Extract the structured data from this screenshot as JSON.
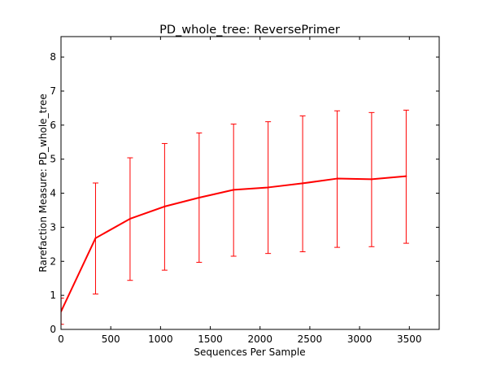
{
  "chart_data": {
    "type": "line",
    "title": "PD_whole_tree: ReversePrimer",
    "xlabel": "Sequences Per Sample",
    "ylabel": "Rarefaction Measure: PD_whole_tree",
    "xlim": [
      0,
      3800
    ],
    "ylim": [
      0,
      8.6
    ],
    "xticks": [
      0,
      500,
      1000,
      1500,
      2000,
      2500,
      3000,
      3500
    ],
    "yticks": [
      0,
      1,
      2,
      3,
      4,
      5,
      6,
      7,
      8
    ],
    "grid": false,
    "legend": "none",
    "series": [
      {
        "color": "#ff0000",
        "x": [
          1,
          347,
          694,
          1041,
          1388,
          1734,
          2081,
          2428,
          2775,
          3121,
          3468
        ],
        "y": [
          0.53,
          2.68,
          3.25,
          3.61,
          3.87,
          4.1,
          4.17,
          4.29,
          4.43,
          4.41,
          4.5
        ],
        "err_low": [
          0.15,
          1.04,
          1.44,
          1.74,
          1.97,
          2.15,
          2.23,
          2.28,
          2.41,
          2.43,
          2.53
        ],
        "err_high": [
          0.92,
          4.3,
          5.04,
          5.46,
          5.77,
          6.03,
          6.1,
          6.27,
          6.42,
          6.37,
          6.44
        ]
      }
    ]
  }
}
